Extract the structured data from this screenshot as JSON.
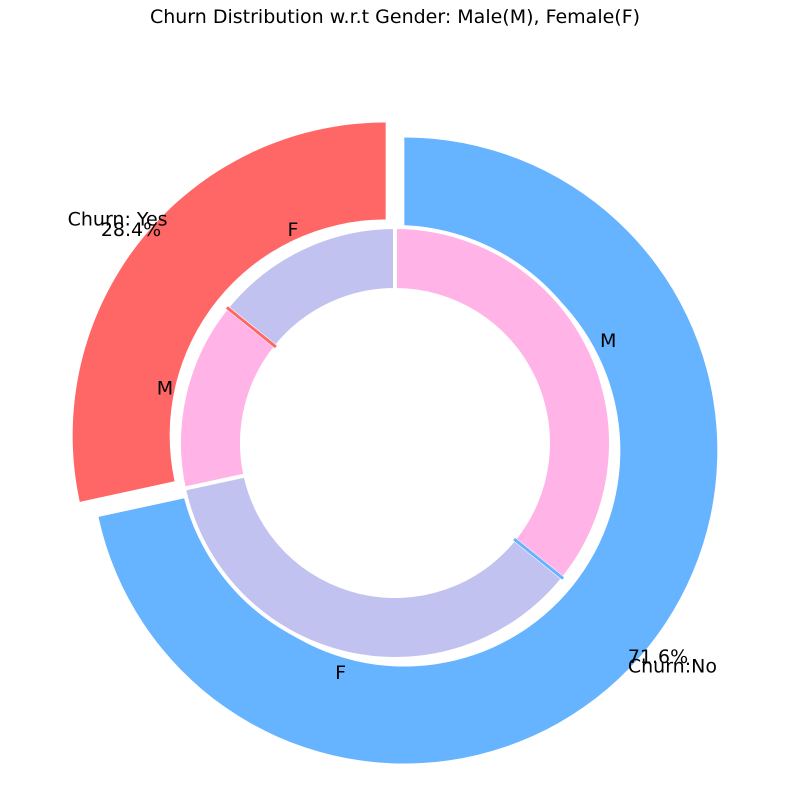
{
  "chart_data": {
    "type": "pie",
    "subtype": "nested-donut",
    "title": "Churn Distribution w.r.t Gender: Male(M), Female(F)",
    "outer_ring": {
      "labels": [
        "Churn: Yes",
        "Churn:No"
      ],
      "values": [
        28.4,
        71.6
      ],
      "percent_labels": [
        "28.4%",
        "71.6%"
      ],
      "colors": [
        "#ff6666",
        "#66b3ff"
      ],
      "exploded": true
    },
    "inner_ring": {
      "groups": [
        "Churn: Yes",
        "Churn: Yes",
        "Churn:No",
        "Churn:No"
      ],
      "labels": [
        "F",
        "M",
        "F",
        "M"
      ],
      "values": [
        14.2,
        14.2,
        35.8,
        35.8
      ],
      "colors": [
        "#c2c2f0",
        "#ffb3e6",
        "#c2c2f0",
        "#ffb3e6"
      ]
    },
    "legend": "none",
    "start_angle_deg": 90,
    "direction": "counterclockwise"
  }
}
